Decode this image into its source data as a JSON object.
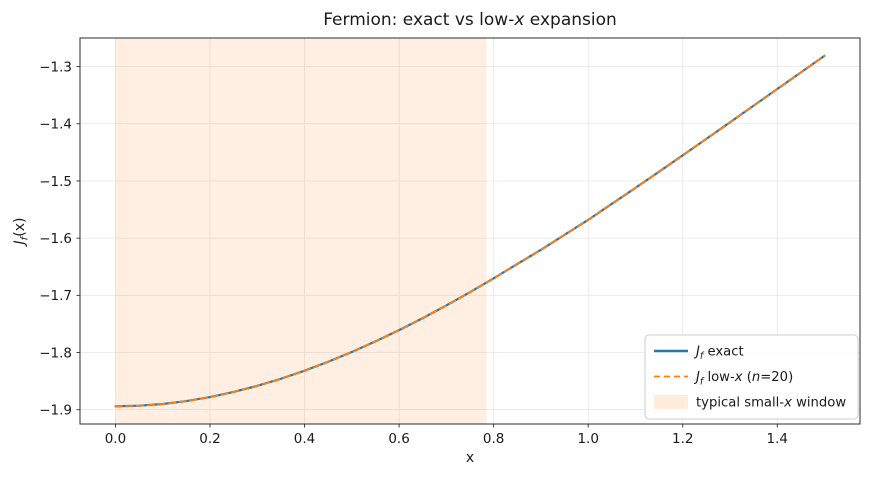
{
  "chart_data": {
    "type": "line",
    "title": "Fermion: exact vs low-x expansion",
    "title_segments": [
      {
        "t": "Fermion: exact vs low-"
      },
      {
        "t": "x",
        "i": true
      },
      {
        "t": " expansion"
      }
    ],
    "xlabel": "x",
    "ylabel": "J_f(x)",
    "ylabel_segments": [
      {
        "t": "J",
        "i": true
      },
      {
        "t": "f",
        "i": true,
        "sub": true
      },
      {
        "t": "(x)"
      }
    ],
    "xlim": [
      -0.075,
      1.575
    ],
    "ylim": [
      -1.925,
      -1.25
    ],
    "xticks": {
      "values": [
        0.0,
        0.2,
        0.4,
        0.6,
        0.8,
        1.0,
        1.2,
        1.4
      ],
      "labels": [
        "0.0",
        "0.2",
        "0.4",
        "0.6",
        "0.8",
        "1.0",
        "1.2",
        "1.4"
      ]
    },
    "yticks": {
      "values": [
        -1.9,
        -1.8,
        -1.7,
        -1.6,
        -1.5,
        -1.4,
        -1.3
      ],
      "labels": [
        "−1.9",
        "−1.8",
        "−1.7",
        "−1.6",
        "−1.5",
        "−1.4",
        "−1.3"
      ]
    },
    "grid": true,
    "x": [
      0.0,
      0.05,
      0.1,
      0.15,
      0.2,
      0.25,
      0.3,
      0.35,
      0.4,
      0.45,
      0.5,
      0.55,
      0.6,
      0.65,
      0.7,
      0.75,
      0.8,
      0.85,
      0.9,
      0.95,
      1.0,
      1.05,
      1.1,
      1.15,
      1.2,
      1.25,
      1.3,
      1.35,
      1.4,
      1.45,
      1.5
    ],
    "series": [
      {
        "name": "Jf exact",
        "color": "#1f77b4",
        "style": "solid",
        "width": 2.2,
        "values": [
          -1.8941,
          -1.893,
          -1.89,
          -1.8849,
          -1.8779,
          -1.869,
          -1.8583,
          -1.8459,
          -1.8318,
          -1.8162,
          -1.7991,
          -1.7806,
          -1.7608,
          -1.7398,
          -1.7177,
          -1.6945,
          -1.6703,
          -1.6452,
          -1.6204,
          -1.5941,
          -1.568,
          -1.5399,
          -1.5121,
          -1.4838,
          -1.4552,
          -1.4264,
          -1.3974,
          -1.3683,
          -1.3392,
          -1.3101,
          -1.281
        ]
      },
      {
        "name": "Jf low-x (n=20)",
        "color": "#ff7f0e",
        "style": "dashed",
        "width": 1.8,
        "values": [
          -1.8941,
          -1.893,
          -1.89,
          -1.8849,
          -1.8779,
          -1.869,
          -1.8583,
          -1.8459,
          -1.8318,
          -1.8162,
          -1.7991,
          -1.7806,
          -1.7608,
          -1.7398,
          -1.7177,
          -1.6945,
          -1.6703,
          -1.6452,
          -1.6204,
          -1.5941,
          -1.568,
          -1.5399,
          -1.5121,
          -1.4838,
          -1.4552,
          -1.4264,
          -1.3974,
          -1.3683,
          -1.3392,
          -1.3101,
          -1.281
        ]
      }
    ],
    "band": {
      "x0": 0.0,
      "x1": 0.785,
      "color": "#ff7f0e",
      "opacity": 0.12,
      "label": "typical small-x window"
    },
    "legend": {
      "position": "lower right",
      "entries": [
        {
          "swatch": "line-solid",
          "color": "#1f77b4",
          "label": "Jf exact",
          "label_segments": [
            {
              "t": "J",
              "i": true
            },
            {
              "t": "f",
              "i": true,
              "sub": true
            },
            {
              "t": " exact"
            }
          ]
        },
        {
          "swatch": "line-dashed",
          "color": "#ff7f0e",
          "label": "Jf low-x (n=20)",
          "label_segments": [
            {
              "t": "J",
              "i": true
            },
            {
              "t": "f",
              "i": true,
              "sub": true
            },
            {
              "t": " low-"
            },
            {
              "t": "x",
              "i": true
            },
            {
              "t": " ("
            },
            {
              "t": "n",
              "i": true
            },
            {
              "t": "=20)"
            }
          ]
        },
        {
          "swatch": "patch",
          "color": "#ff7f0e",
          "opacity": 0.15,
          "label": "typical small-x window",
          "label_segments": [
            {
              "t": "typical small-"
            },
            {
              "t": "x",
              "i": true
            },
            {
              "t": " window"
            }
          ]
        }
      ]
    },
    "colors": {
      "grid": "#dddddd",
      "spine": "#2b2b2b",
      "text": "#1a1a1a",
      "background": "#ffffff"
    }
  }
}
